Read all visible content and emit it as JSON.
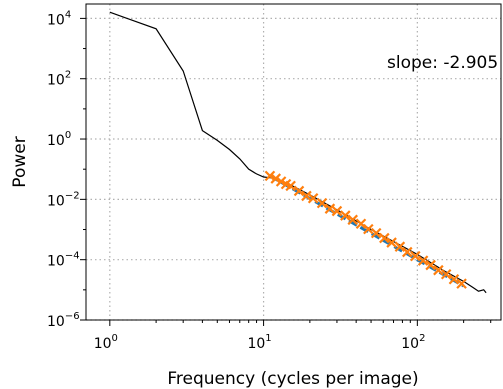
{
  "chart_data": {
    "type": "line",
    "title": "",
    "xlabel": "Frequency (cycles per image)",
    "ylabel": "Power",
    "xscale": "log",
    "yscale": "log",
    "xlim": [
      0.7,
      350
    ],
    "ylim": [
      1e-06,
      30000.0
    ],
    "grid": true,
    "annotation": "slope: -2.905",
    "x_ticks": [
      {
        "value": 1,
        "base": "10",
        "exp": "0"
      },
      {
        "value": 10,
        "base": "10",
        "exp": "1"
      },
      {
        "value": 100,
        "base": "10",
        "exp": "2"
      }
    ],
    "y_ticks": [
      {
        "value": 1e-06,
        "base": "10",
        "exp": "−6"
      },
      {
        "value": 0.0001,
        "base": "10",
        "exp": "−4"
      },
      {
        "value": 0.01,
        "base": "10",
        "exp": "−2"
      },
      {
        "value": 1,
        "base": "10",
        "exp": "0"
      },
      {
        "value": 100,
        "base": "10",
        "exp": "2"
      },
      {
        "value": 10000,
        "base": "10",
        "exp": "4"
      }
    ],
    "series": [
      {
        "type": "line",
        "color": "#000000",
        "x": [
          1,
          2,
          3,
          4,
          5,
          6,
          7,
          8,
          9,
          10,
          12,
          15,
          20,
          30,
          50,
          70,
          100,
          150,
          200,
          230,
          250,
          270,
          280
        ],
        "y": [
          16000,
          4500,
          180,
          1.9,
          0.9,
          0.45,
          0.22,
          0.1,
          0.07,
          0.055,
          0.05,
          0.03,
          0.014,
          0.0045,
          0.001,
          0.0004,
          0.00015,
          4.2e-05,
          1.9e-05,
          1.2e-05,
          9e-06,
          1e-05,
          8e-06
        ]
      },
      {
        "type": "fit",
        "color": "#1f77b4",
        "x": [
          11,
          200
        ],
        "y": [
          0.06,
          1.34e-05
        ]
      },
      {
        "type": "scatter",
        "color": "#ff7f0e",
        "marker": "x",
        "x": [
          11,
          12,
          13,
          14,
          15,
          17,
          19,
          21,
          24,
          27,
          30,
          34,
          38,
          43,
          48,
          54,
          61,
          68,
          77,
          86,
          97,
          109,
          122,
          137,
          154,
          173,
          194
        ],
        "y": [
          0.06,
          0.049,
          0.039,
          0.032,
          0.028,
          0.019,
          0.013,
          0.0109,
          0.0075,
          0.0049,
          0.0041,
          0.0029,
          0.0021,
          0.00155,
          0.00103,
          0.00076,
          0.00052,
          0.00037,
          0.00027,
          0.000179,
          0.000131,
          9.31e-05,
          6.62e-05,
          4.48e-05,
          3.29e-05,
          2.25e-05,
          1.61e-05
        ]
      }
    ]
  }
}
